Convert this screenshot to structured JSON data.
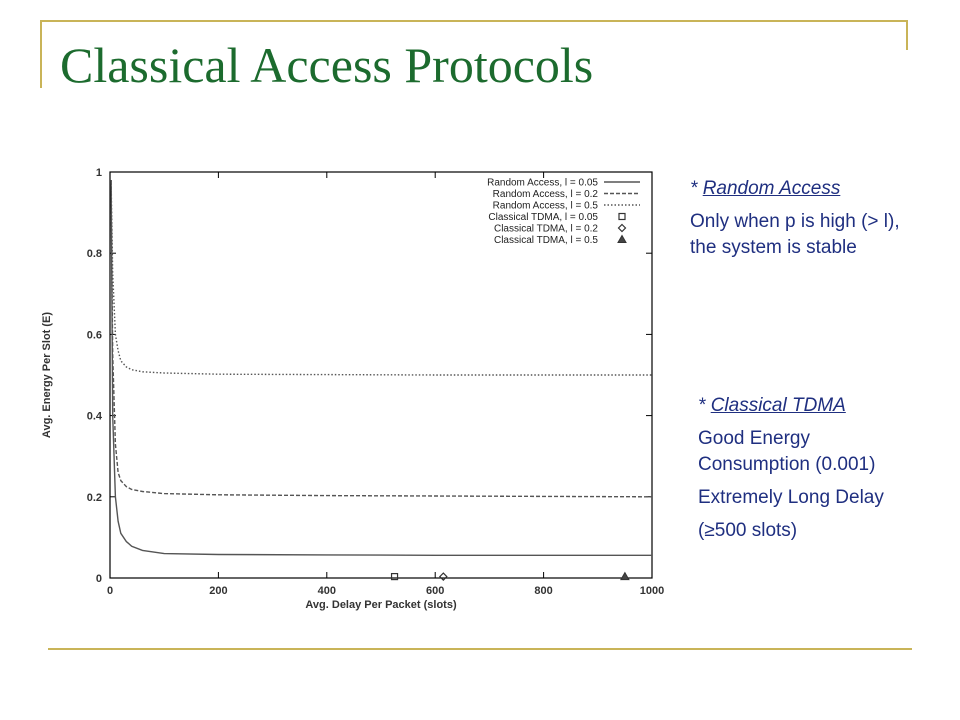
{
  "slide": {
    "title": "Classical Access Protocols",
    "accent_color": "#c9b458",
    "title_color": "#1c6b2e",
    "text_color": "#1f2f80"
  },
  "notes": {
    "random_access": {
      "star": "* ",
      "heading": "Random Access",
      "body": "Only when p is high (> l), the system is stable"
    },
    "tdma": {
      "star": "* ",
      "heading": "Classical TDMA",
      "line1": "Good Energy Consumption (0.001)",
      "line2": "Extremely Long Delay",
      "line3": "(≥500 slots)"
    }
  },
  "chart_data": {
    "type": "line",
    "xlabel": "Avg. Delay Per Packet (slots)",
    "ylabel": "Avg. Energy Per Slot (E)",
    "xlim": [
      0,
      1000
    ],
    "ylim": [
      0,
      1
    ],
    "xticks": [
      0,
      200,
      400,
      600,
      800,
      1000
    ],
    "yticks": [
      0,
      0.2,
      0.4,
      0.6,
      0.8,
      1
    ],
    "grid": false,
    "legend_position": "top-right",
    "series": [
      {
        "name": "Random Access, l = 0.05",
        "kind": "line",
        "style": "solid",
        "x": [
          2,
          5,
          10,
          15,
          20,
          30,
          40,
          60,
          100,
          200,
          400,
          600,
          800,
          1000
        ],
        "y": [
          0.98,
          0.4,
          0.2,
          0.14,
          0.11,
          0.09,
          0.078,
          0.068,
          0.06,
          0.058,
          0.057,
          0.056,
          0.056,
          0.056
        ]
      },
      {
        "name": "Random Access, l =  0.2",
        "kind": "line",
        "style": "dashed",
        "x": [
          2,
          5,
          10,
          15,
          20,
          30,
          40,
          60,
          100,
          200,
          400,
          600,
          800,
          1000
        ],
        "y": [
          0.98,
          0.55,
          0.33,
          0.26,
          0.24,
          0.225,
          0.218,
          0.213,
          0.208,
          0.205,
          0.203,
          0.202,
          0.201,
          0.2
        ]
      },
      {
        "name": "Random Access, l =  0.5",
        "kind": "line",
        "style": "dotted",
        "x": [
          2,
          5,
          10,
          15,
          20,
          30,
          40,
          60,
          100,
          200,
          400,
          600,
          800,
          1000
        ],
        "y": [
          0.98,
          0.75,
          0.6,
          0.56,
          0.535,
          0.52,
          0.513,
          0.508,
          0.505,
          0.502,
          0.501,
          0.5,
          0.5,
          0.5
        ]
      },
      {
        "name": "Classical TDMA, l = 0.05",
        "kind": "marker",
        "marker": "square",
        "x": [
          525
        ],
        "y": [
          0.001
        ]
      },
      {
        "name": "Classical TDMA, l =  0.2",
        "kind": "marker",
        "marker": "diamond",
        "x": [
          615
        ],
        "y": [
          0.001
        ]
      },
      {
        "name": "Classical TDMA, l =  0.5",
        "kind": "marker",
        "marker": "triangle",
        "x": [
          950
        ],
        "y": [
          0.001
        ]
      }
    ]
  }
}
